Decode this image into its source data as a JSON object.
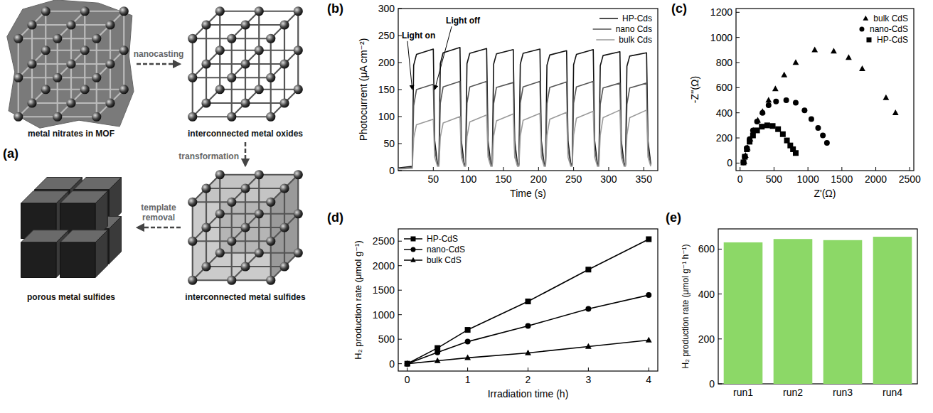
{
  "diagram": {
    "panel": "(a)",
    "nodes": [
      {
        "label": "metal nitrates in MOF"
      },
      {
        "label": "interconnected metal oxides"
      },
      {
        "label": "interconnected metal sulfides"
      },
      {
        "label": "porous metal sulfides"
      }
    ],
    "edges": [
      {
        "label": "nanocasting"
      },
      {
        "label": "transformation"
      },
      {
        "label": "template removal"
      }
    ]
  },
  "chart_data": [
    {
      "panel": "(b)",
      "type": "line",
      "xlabel": "Time (s)",
      "ylabel": "Photocurrent (μA cm⁻²)",
      "x": [
        0,
        20,
        22,
        26,
        50,
        52,
        56,
        58,
        60,
        64,
        88,
        90,
        94,
        96,
        98,
        102,
        126,
        128,
        132,
        134,
        136,
        140,
        164,
        166,
        170,
        172,
        174,
        178,
        202,
        204,
        208,
        210,
        212,
        216,
        240,
        242,
        246,
        248,
        250,
        254,
        278,
        280,
        284,
        286,
        288,
        292,
        316,
        318,
        322,
        324,
        326,
        330,
        354,
        356,
        360
      ],
      "xlim": [
        0,
        370
      ],
      "xticks": [
        50,
        100,
        150,
        200,
        250,
        300,
        350
      ],
      "ylim": [
        0,
        300
      ],
      "yticks": [
        0,
        50,
        100,
        150,
        200,
        250,
        300
      ],
      "legend": "upper right",
      "series": [
        {
          "name": "HP-Cds",
          "color": "#111111",
          "line_style": "solid",
          "values": [
            5,
            8,
            195,
            215,
            225,
            55,
            12,
            12,
            198,
            218,
            228,
            55,
            12,
            12,
            198,
            217,
            226,
            55,
            12,
            12,
            197,
            216,
            224,
            55,
            12,
            12,
            197,
            217,
            225,
            55,
            12,
            12,
            195,
            214,
            222,
            55,
            12,
            12,
            196,
            215,
            224,
            55,
            12,
            12,
            194,
            213,
            220,
            55,
            12,
            12,
            193,
            212,
            218,
            55,
            12
          ]
        },
        {
          "name": "nano Cds",
          "color": "#555555",
          "line_style": "solid",
          "values": [
            4,
            6,
            120,
            150,
            160,
            40,
            10,
            10,
            125,
            155,
            165,
            40,
            10,
            10,
            125,
            155,
            165,
            40,
            10,
            10,
            124,
            154,
            163,
            40,
            10,
            10,
            125,
            155,
            165,
            40,
            10,
            10,
            124,
            154,
            164,
            40,
            10,
            10,
            125,
            155,
            165,
            40,
            10,
            10,
            123,
            153,
            162,
            40,
            10,
            10,
            123,
            153,
            162,
            40,
            10
          ]
        },
        {
          "name": "bulk Cds",
          "color": "#9a9a9a",
          "line_style": "solid",
          "values": [
            3,
            4,
            60,
            85,
            95,
            25,
            8,
            8,
            62,
            88,
            100,
            25,
            8,
            8,
            63,
            90,
            103,
            25,
            8,
            8,
            64,
            92,
            105,
            25,
            8,
            8,
            64,
            93,
            106,
            25,
            8,
            8,
            65,
            95,
            108,
            25,
            8,
            8,
            66,
            97,
            110,
            25,
            8,
            8,
            66,
            98,
            112,
            25,
            8,
            8,
            66,
            98,
            112,
            25,
            8
          ]
        }
      ],
      "annotations": [
        {
          "text": "Light on",
          "x": 5,
          "y": 245,
          "point": [
            20,
            150
          ]
        },
        {
          "text": "Light off",
          "x": 68,
          "y": 272,
          "point": [
            52,
            150
          ]
        }
      ]
    },
    {
      "panel": "(c)",
      "type": "scatter",
      "xlabel": "Z'(Ω)",
      "ylabel": "-Z''(Ω)",
      "xlim": [
        -60,
        2560
      ],
      "xticks": [
        0,
        500,
        1000,
        1500,
        2000,
        2500
      ],
      "ylim": [
        -60,
        1230
      ],
      "yticks": [
        0,
        200,
        400,
        600,
        800,
        1000,
        1200
      ],
      "legend": "upper right",
      "series": [
        {
          "name": "bulk CdS",
          "color": "#000000",
          "marker": "triangle",
          "x": [
            60,
            80,
            110,
            150,
            200,
            260,
            330,
            420,
            520,
            650,
            820,
            1100,
            1380,
            1600,
            1800,
            2150,
            2290
          ],
          "values": [
            10,
            60,
            120,
            190,
            260,
            340,
            410,
            500,
            590,
            700,
            800,
            900,
            890,
            840,
            750,
            520,
            400
          ]
        },
        {
          "name": "nano-CdS",
          "color": "#000000",
          "marker": "circle",
          "x": [
            50,
            70,
            100,
            140,
            190,
            250,
            330,
            420,
            530,
            680,
            820,
            950,
            1050,
            1150,
            1220,
            1280
          ],
          "values": [
            5,
            50,
            120,
            190,
            260,
            330,
            400,
            460,
            490,
            500,
            480,
            420,
            350,
            280,
            220,
            160
          ]
        },
        {
          "name": "HP-CdS",
          "color": "#000000",
          "marker": "square",
          "x": [
            50,
            70,
            100,
            140,
            190,
            250,
            320,
            400,
            480,
            560,
            630,
            690,
            740,
            780,
            820
          ],
          "values": [
            5,
            50,
            110,
            170,
            220,
            260,
            290,
            300,
            295,
            270,
            230,
            180,
            140,
            110,
            80
          ]
        }
      ]
    },
    {
      "panel": "(d)",
      "type": "line",
      "xlabel": "Irradiation time (h)",
      "ylabel": "H₂ production rate (μmol g⁻¹)",
      "x": [
        0,
        0.5,
        1,
        2,
        3,
        4
      ],
      "xlim": [
        -0.15,
        4.15
      ],
      "xticks": [
        0,
        1,
        2,
        3,
        4
      ],
      "ylim": [
        -150,
        2750
      ],
      "yticks": [
        0,
        500,
        1000,
        1500,
        2000,
        2500
      ],
      "legend": "upper left",
      "series": [
        {
          "name": "HP-CdS",
          "color": "#000000",
          "marker": "square",
          "line_style": "solid",
          "values": [
            0,
            320,
            690,
            1270,
            1920,
            2540
          ]
        },
        {
          "name": "nano-CdS",
          "color": "#000000",
          "marker": "circle",
          "line_style": "solid",
          "values": [
            0,
            230,
            450,
            770,
            1120,
            1400
          ]
        },
        {
          "name": "bulk CdS",
          "color": "#000000",
          "marker": "triangle",
          "line_style": "solid",
          "values": [
            0,
            60,
            120,
            220,
            350,
            480
          ]
        }
      ]
    },
    {
      "panel": "(e)",
      "type": "bar",
      "ylabel": "H₂ production rate (μmol g⁻¹ h⁻¹)",
      "categories": [
        "run1",
        "run2",
        "run3",
        "run4"
      ],
      "values": [
        630,
        645,
        640,
        655
      ],
      "color": "#8cd867",
      "ylim": [
        0,
        690
      ],
      "yticks": [
        0,
        200,
        400,
        600
      ]
    }
  ]
}
